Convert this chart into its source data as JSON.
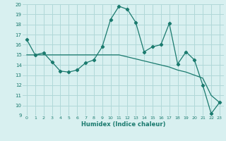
{
  "title": "",
  "xlabel": "Humidex (Indice chaleur)",
  "ylabel": "",
  "x": [
    0,
    1,
    2,
    3,
    4,
    5,
    6,
    7,
    8,
    9,
    10,
    11,
    12,
    13,
    14,
    15,
    16,
    17,
    18,
    19,
    20,
    21,
    22,
    23
  ],
  "line1_y": [
    16.5,
    15.0,
    15.2,
    14.3,
    13.4,
    13.3,
    13.5,
    14.2,
    14.5,
    15.8,
    18.5,
    19.8,
    19.5,
    18.2,
    15.3,
    15.8,
    16.0,
    18.1,
    14.1,
    15.3,
    14.5,
    12.0,
    9.2,
    10.3
  ],
  "line2_y": [
    15.0,
    15.0,
    15.0,
    15.0,
    15.0,
    15.0,
    15.0,
    15.0,
    15.0,
    15.0,
    15.0,
    15.0,
    14.8,
    14.6,
    14.4,
    14.2,
    14.0,
    13.8,
    13.5,
    13.3,
    13.0,
    12.7,
    11.0,
    10.3
  ],
  "line_color": "#1a7a6e",
  "background_color": "#d8f0f0",
  "grid_color": "#b0d8d8",
  "ylim": [
    9,
    20
  ],
  "xlim": [
    -0.5,
    23.5
  ],
  "yticks": [
    9,
    10,
    11,
    12,
    13,
    14,
    15,
    16,
    17,
    18,
    19,
    20
  ],
  "xticks": [
    0,
    1,
    2,
    3,
    4,
    5,
    6,
    7,
    8,
    9,
    10,
    11,
    12,
    13,
    14,
    15,
    16,
    17,
    18,
    19,
    20,
    21,
    22,
    23
  ]
}
